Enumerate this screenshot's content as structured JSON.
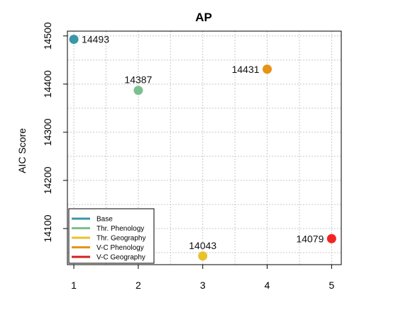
{
  "chart_data": {
    "type": "scatter",
    "title": "AP",
    "xlabel": "",
    "ylabel": "AIC Score",
    "xlim": [
      0.9,
      5.15
    ],
    "ylim": [
      14025,
      14510
    ],
    "x_ticks": [
      1,
      2,
      3,
      4,
      5
    ],
    "y_ticks": [
      14100,
      14200,
      14300,
      14400,
      14500
    ],
    "grid": true,
    "legend_position": "bottom-left",
    "points": [
      {
        "x": 1,
        "y": 14493,
        "label": "14493",
        "color": "#3A97A9",
        "label_side": "right"
      },
      {
        "x": 2,
        "y": 14387,
        "label": "14387",
        "color": "#7BC08F",
        "label_side": "top"
      },
      {
        "x": 3,
        "y": 14043,
        "label": "14043",
        "color": "#E8C12C",
        "label_side": "top"
      },
      {
        "x": 4,
        "y": 14431,
        "label": "14431",
        "color": "#E69316",
        "label_side": "left"
      },
      {
        "x": 5,
        "y": 14079,
        "label": "14079",
        "color": "#F42424",
        "label_side": "left"
      }
    ],
    "legend": [
      {
        "name": "Base",
        "color": "#3A97A9"
      },
      {
        "name": "Thr. Phenology",
        "color": "#7BC08F"
      },
      {
        "name": "Thr. Geography",
        "color": "#E8C12C"
      },
      {
        "name": "V-C Phenology",
        "color": "#E69316"
      },
      {
        "name": "V-C Geography",
        "color": "#D42020"
      }
    ]
  }
}
